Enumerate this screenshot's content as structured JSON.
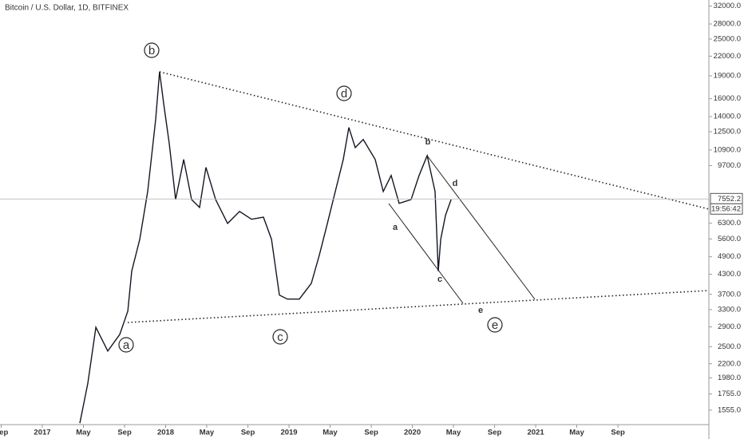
{
  "chart_data": {
    "type": "line",
    "title": "Bitcoin / U.S. Dollar, 1D, BITFINEX",
    "log_scale": true,
    "x": [
      2017.304,
      2017.369,
      2017.434,
      2017.531,
      2017.628,
      2017.693,
      2017.725,
      2017.79,
      2017.854,
      2017.919,
      2017.951,
      2017.984,
      2018.029,
      2018.081,
      2018.146,
      2018.21,
      2018.275,
      2018.327,
      2018.405,
      2018.502,
      2018.599,
      2018.696,
      2018.793,
      2018.858,
      2018.922,
      2018.987,
      2019.084,
      2019.181,
      2019.246,
      2019.311,
      2019.375,
      2019.44,
      2019.485,
      2019.537,
      2019.602,
      2019.699,
      2019.764,
      2019.828,
      2019.893,
      2019.99,
      2020.055,
      2020.12,
      2020.184,
      2020.21,
      2020.23,
      2020.269,
      2020.314
    ],
    "series": [
      {
        "name": "BTCUSD",
        "color": "#131722",
        "values": [
          1410,
          1900,
          2890,
          2420,
          2740,
          3260,
          4400,
          5590,
          7990,
          13700,
          19600,
          15450,
          11450,
          7520,
          10150,
          7520,
          7090,
          9570,
          7520,
          6290,
          6880,
          6490,
          6590,
          5590,
          3680,
          3570,
          3570,
          4020,
          4960,
          6290,
          7990,
          10150,
          12900,
          11100,
          11790,
          10150,
          7990,
          9010,
          7310,
          7520,
          9010,
          10450,
          7990,
          4400,
          5590,
          6690,
          7520
        ]
      }
    ],
    "last_price": 7552.2,
    "timer": "19:56:42",
    "xlim": [
      2016.657,
      2022.404
    ],
    "xticks": [
      {
        "value": 2016.667,
        "label": "Sep"
      },
      2017,
      {
        "value": 2017.333,
        "label": "May"
      },
      {
        "value": 2017.667,
        "label": "Sep"
      },
      2018,
      {
        "value": 2018.333,
        "label": "May"
      },
      {
        "value": 2018.667,
        "label": "Sep"
      },
      2019,
      {
        "value": 2019.333,
        "label": "May"
      },
      {
        "value": 2019.667,
        "label": "Sep"
      },
      2020,
      {
        "value": 2020.333,
        "label": "May"
      },
      {
        "value": 2020.667,
        "label": "Sep"
      },
      2021,
      {
        "value": 2021.333,
        "label": "May"
      },
      {
        "value": 2021.667,
        "label": "Sep"
      }
    ],
    "ylim": [
      1395,
      33500
    ],
    "yticks": [
      {
        "value": 32000,
        "label": "32000.0"
      },
      {
        "value": 28000,
        "label": "28000.0"
      },
      {
        "value": 25000,
        "label": "25000.0"
      },
      {
        "value": 22000,
        "label": "22000.0"
      },
      {
        "value": 19000,
        "label": "19000.0"
      },
      {
        "value": 16000,
        "label": "16000.0"
      },
      {
        "value": 14000,
        "label": "14000.0"
      },
      {
        "value": 12500,
        "label": "12500.0"
      },
      {
        "value": 10900,
        "label": "10900.0"
      },
      {
        "value": 9700,
        "label": "9700.0"
      },
      {
        "value": 6300,
        "label": "6300.0"
      },
      {
        "value": 5600,
        "label": "5600.0"
      },
      {
        "value": 4900,
        "label": "4900.0"
      },
      {
        "value": 4300,
        "label": "4300.0"
      },
      {
        "value": 3700,
        "label": "3700.0"
      },
      {
        "value": 3300,
        "label": "3300.0"
      },
      {
        "value": 2900,
        "label": "2900.0"
      },
      {
        "value": 2500,
        "label": "2500.0"
      },
      {
        "value": 2200,
        "label": "2200.0"
      },
      {
        "value": 1980,
        "label": "1980.0"
      },
      {
        "value": 1755,
        "label": "1755.0"
      },
      {
        "value": 1555,
        "label": "1555.0"
      }
    ],
    "wave_labels": [
      "b",
      "d",
      "a",
      "c",
      "e"
    ],
    "sub_wave_labels": [
      "b",
      "d",
      "a",
      "c",
      "e"
    ]
  }
}
